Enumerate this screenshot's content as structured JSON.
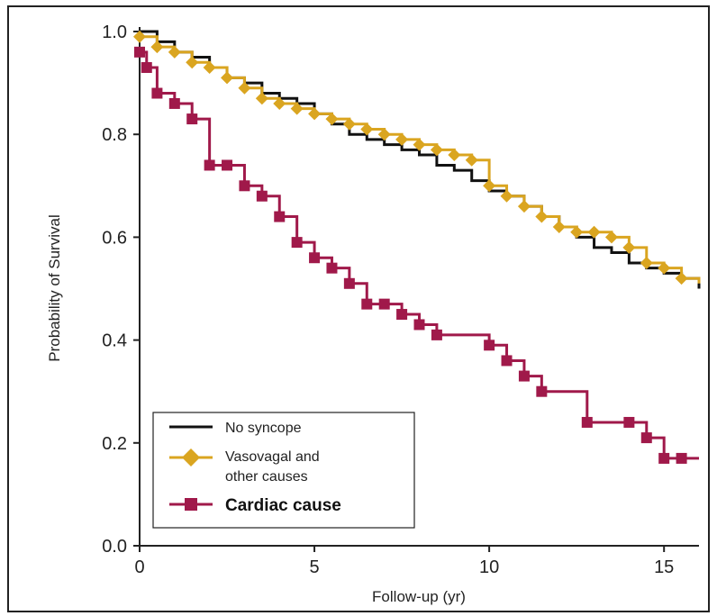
{
  "chart_data": {
    "type": "line",
    "step": true,
    "xlabel": "Follow-up (yr)",
    "ylabel": "Probability of Survival",
    "xlim": [
      0,
      16
    ],
    "ylim": [
      0,
      1.0
    ],
    "x_ticks": [
      0,
      5,
      10,
      15
    ],
    "x_tick_labels": [
      "0",
      "5",
      "10",
      "15"
    ],
    "y_ticks": [
      0.0,
      0.2,
      0.4,
      0.6,
      0.8,
      1.0
    ],
    "y_tick_labels": [
      "0.0",
      "0.2",
      "0.4",
      "0.6",
      "0.8",
      "1.0"
    ],
    "grid": false,
    "legend_position": "bottom-left",
    "series": [
      {
        "name": "No syncope",
        "color": "#111111",
        "marker": "none",
        "x": [
          0,
          0.5,
          1.0,
          1.5,
          2.0,
          2.5,
          3.0,
          3.5,
          4.0,
          4.5,
          5.0,
          5.5,
          6.0,
          6.5,
          7.0,
          7.5,
          8.0,
          8.5,
          9.0,
          9.5,
          10.0,
          10.5,
          11.0,
          11.5,
          12.0,
          12.5,
          13.0,
          13.5,
          14.0,
          14.5,
          15.0,
          15.5,
          16.0
        ],
        "y": [
          1.0,
          0.98,
          0.96,
          0.95,
          0.93,
          0.91,
          0.9,
          0.88,
          0.87,
          0.86,
          0.84,
          0.82,
          0.8,
          0.79,
          0.78,
          0.77,
          0.76,
          0.74,
          0.73,
          0.71,
          0.69,
          0.68,
          0.66,
          0.64,
          0.62,
          0.6,
          0.58,
          0.57,
          0.55,
          0.54,
          0.53,
          0.52,
          0.5
        ]
      },
      {
        "name": "Vasovagal and other causes",
        "color": "#DAA520",
        "marker": "diamond",
        "x": [
          0,
          0.5,
          1.0,
          1.5,
          2.0,
          2.5,
          3.0,
          3.5,
          4.0,
          4.5,
          5.0,
          5.5,
          6.0,
          6.5,
          7.0,
          7.5,
          8.0,
          8.5,
          9.0,
          9.5,
          10.0,
          10.5,
          11.0,
          11.5,
          12.0,
          12.5,
          13.0,
          13.5,
          14.0,
          14.5,
          15.0,
          15.5,
          16.0
        ],
        "y": [
          0.99,
          0.97,
          0.96,
          0.94,
          0.93,
          0.91,
          0.89,
          0.87,
          0.86,
          0.85,
          0.84,
          0.83,
          0.82,
          0.81,
          0.8,
          0.79,
          0.78,
          0.77,
          0.76,
          0.75,
          0.7,
          0.68,
          0.66,
          0.64,
          0.62,
          0.61,
          0.61,
          0.6,
          0.58,
          0.55,
          0.54,
          0.52,
          0.51
        ]
      },
      {
        "name": "Cardiac cause",
        "color": "#A0194A",
        "marker": "square",
        "x": [
          0,
          0.2,
          0.5,
          1.0,
          1.5,
          2.0,
          2.5,
          3.0,
          3.5,
          4.0,
          4.5,
          5.0,
          5.5,
          6.0,
          6.5,
          7.0,
          7.5,
          8.0,
          8.5,
          10.0,
          10.5,
          11.0,
          11.5,
          12.8,
          14.0,
          14.5,
          15.0,
          15.5,
          16.0
        ],
        "y": [
          0.96,
          0.93,
          0.88,
          0.86,
          0.83,
          0.74,
          0.74,
          0.7,
          0.68,
          0.64,
          0.59,
          0.56,
          0.54,
          0.51,
          0.47,
          0.47,
          0.45,
          0.43,
          0.41,
          0.39,
          0.36,
          0.33,
          0.3,
          0.24,
          0.24,
          0.21,
          0.17,
          0.17,
          0.17
        ]
      }
    ],
    "legend": [
      {
        "label": "No syncope",
        "bold": false
      },
      {
        "label": "Vasovagal and",
        "label2": "other causes",
        "bold": false
      },
      {
        "label": "Cardiac cause",
        "bold": true
      }
    ]
  }
}
